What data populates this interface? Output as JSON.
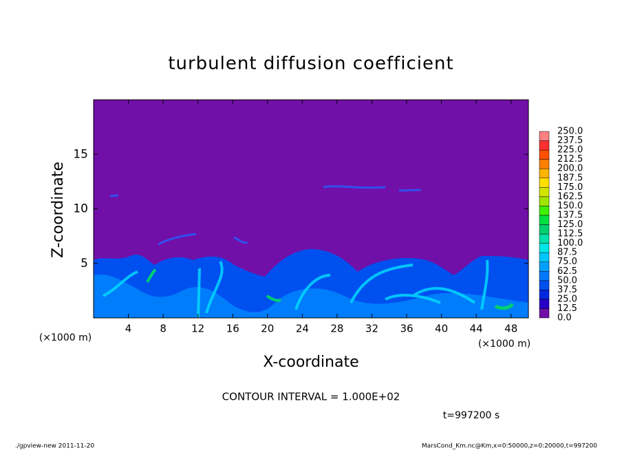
{
  "chart_data": {
    "type": "contour",
    "title": "turbulent diffusion coefficient",
    "xlabel": "X-coordinate",
    "ylabel": "Z-coordinate",
    "x_unit_label": "(×1000 m)",
    "y_unit_label": "(×1000 m)",
    "xlim": [
      0,
      50
    ],
    "xticks": [
      4,
      8,
      12,
      16,
      20,
      24,
      28,
      32,
      36,
      40,
      44,
      48
    ],
    "ylim": [
      0,
      20
    ],
    "yticks": [
      5,
      10,
      15
    ],
    "colorbar": {
      "levels": [
        {
          "value": 0,
          "label": "0.0"
        },
        12.5,
        {
          "value": 25,
          "label": "25.0"
        },
        37.5,
        {
          "value": 50,
          "label": "50.0"
        },
        62.5,
        {
          "value": 75,
          "label": "75.0"
        },
        87.5,
        {
          "value": 100,
          "label": "100.0"
        },
        112.5,
        {
          "value": 125,
          "label": "125.0"
        },
        137.5,
        {
          "value": 150,
          "label": "150.0"
        },
        162.5,
        {
          "value": 175,
          "label": "175.0"
        },
        187.5,
        {
          "value": 200,
          "label": "200.0"
        },
        212.5,
        {
          "value": 225,
          "label": "225.0"
        },
        237.5,
        {
          "value": 250,
          "label": "250.0"
        }
      ],
      "colors": [
        "#7010a8",
        "#2800c8",
        "#0028e0",
        "#0050f0",
        "#0078ff",
        "#00a0ff",
        "#00c8ff",
        "#00e6e6",
        "#00e0a8",
        "#00d070",
        "#00e040",
        "#40f000",
        "#a0e600",
        "#d2e600",
        "#ffe000",
        "#ffb400",
        "#ff8000",
        "#ff5000",
        "#ff3030",
        "#ff8080"
      ]
    },
    "annotation": "CONTOUR INTERVAL = 1.000E+02",
    "time_label": "t=997200 s"
  },
  "footer": {
    "left": "./gpview-new  2011-11-20",
    "right": "MarsCond_Km.nc@Km,x=0:50000,z=0:20000,t=997200"
  }
}
